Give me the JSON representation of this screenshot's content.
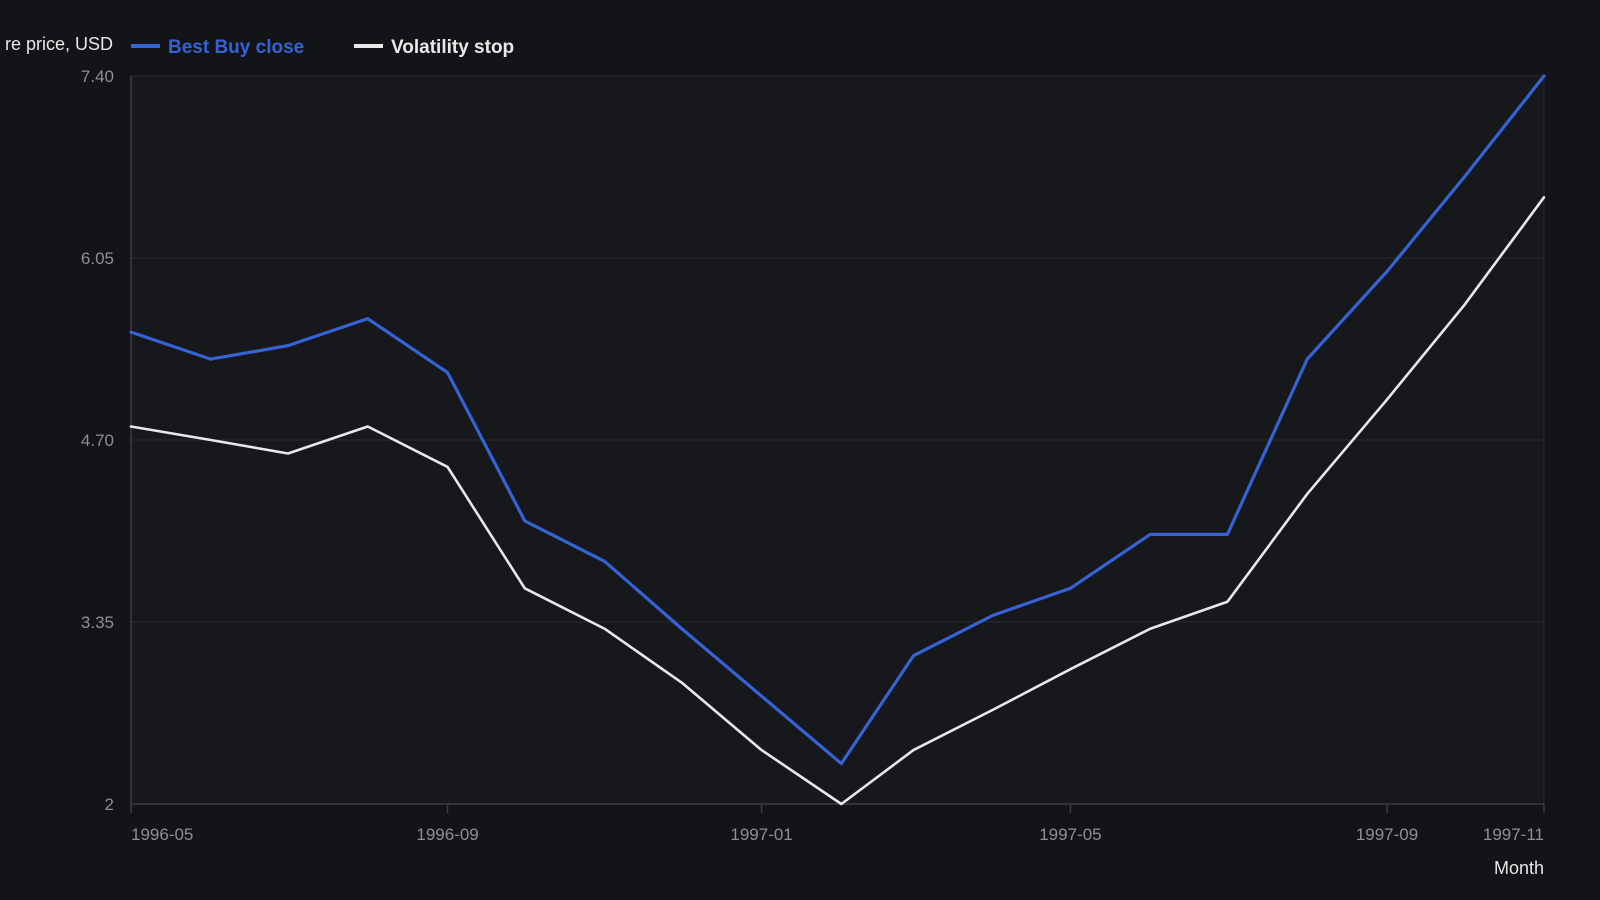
{
  "chart_data": {
    "type": "line",
    "ylabel": "re price, USD",
    "xlabel": "Month",
    "x_ticks": [
      "1996-05",
      "1996-09",
      "1997-01",
      "1997-05",
      "1997-09",
      "1997-11"
    ],
    "y_ticks": [
      "2",
      "3.35",
      "4.70",
      "6.05",
      "7.40"
    ],
    "ylim": [
      2,
      7.4
    ],
    "xlim": [
      "1996-05-01",
      "1997-11-01"
    ],
    "grid": true,
    "legend_position": "top-left",
    "dates": [
      "1996-05-01",
      "1996-06-01",
      "1996-07-01",
      "1996-08-01",
      "1996-09-01",
      "1996-10-01",
      "1996-11-01",
      "1996-12-01",
      "1997-01-01",
      "1997-02-01",
      "1997-03-01",
      "1997-04-01",
      "1997-05-01",
      "1997-06-01",
      "1997-07-01",
      "1997-08-01",
      "1997-09-01",
      "1997-10-01",
      "1997-11-01"
    ],
    "series": [
      {
        "name": "Best Buy close",
        "color": "#3562d4",
        "values": [
          5.5,
          5.3,
          5.4,
          5.6,
          5.2,
          4.1,
          3.8,
          3.3,
          2.8,
          2.3,
          3.1,
          3.4,
          3.6,
          4.0,
          4.0,
          5.3,
          5.95,
          6.65,
          7.4
        ]
      },
      {
        "name": "Volatility stop",
        "color": "#e8e8e8",
        "values": [
          4.8,
          4.7,
          4.6,
          4.8,
          4.5,
          3.6,
          3.3,
          2.9,
          2.4,
          2.0,
          2.4,
          2.7,
          3.0,
          3.3,
          3.5,
          4.3,
          5.0,
          5.7,
          6.5
        ]
      }
    ]
  },
  "colors": {
    "background": "#131417",
    "plot_background": "#17181c",
    "grid": "#2a2c31",
    "axis": "#3a3c42"
  }
}
